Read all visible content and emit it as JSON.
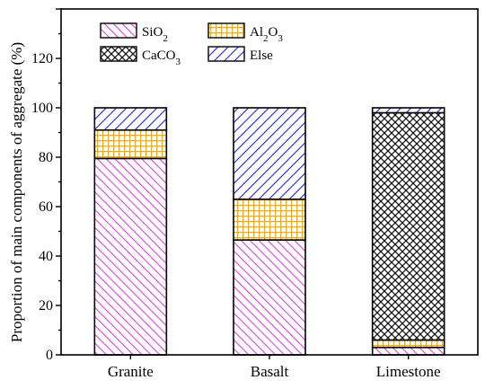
{
  "chart_data": {
    "type": "bar",
    "stacked": true,
    "categories": [
      "Granite",
      "Basalt",
      "Limestone"
    ],
    "series": [
      {
        "name": "SiO2",
        "label_base": "SiO",
        "label_sub": "2",
        "color": "#e040e0",
        "pattern": "diagonal-ascending",
        "values": [
          79.5,
          46.5,
          3
        ]
      },
      {
        "name": "Al2O3",
        "label_base": "Al",
        "label_sub1": "2",
        "label_mid": "O",
        "label_sub2": "3",
        "color": "#f0a820",
        "pattern": "grid",
        "values": [
          11.5,
          16.5,
          3
        ]
      },
      {
        "name": "CaCO3",
        "label_base": "CaCO",
        "label_sub": "3",
        "color": "#000000",
        "pattern": "crosshatch",
        "values": [
          0,
          0,
          92
        ]
      },
      {
        "name": "Else",
        "label_base": "Else",
        "color": "#2020e0",
        "pattern": "diagonal-descending",
        "values": [
          9,
          37,
          2
        ]
      }
    ],
    "ylabel": "Proportion of main components of aggregate (%)",
    "xlabel": "",
    "ylim": [
      0,
      140
    ],
    "yticks": [
      0,
      20,
      40,
      60,
      80,
      100,
      120
    ],
    "grid": false,
    "legend_placement": "top-left"
  }
}
